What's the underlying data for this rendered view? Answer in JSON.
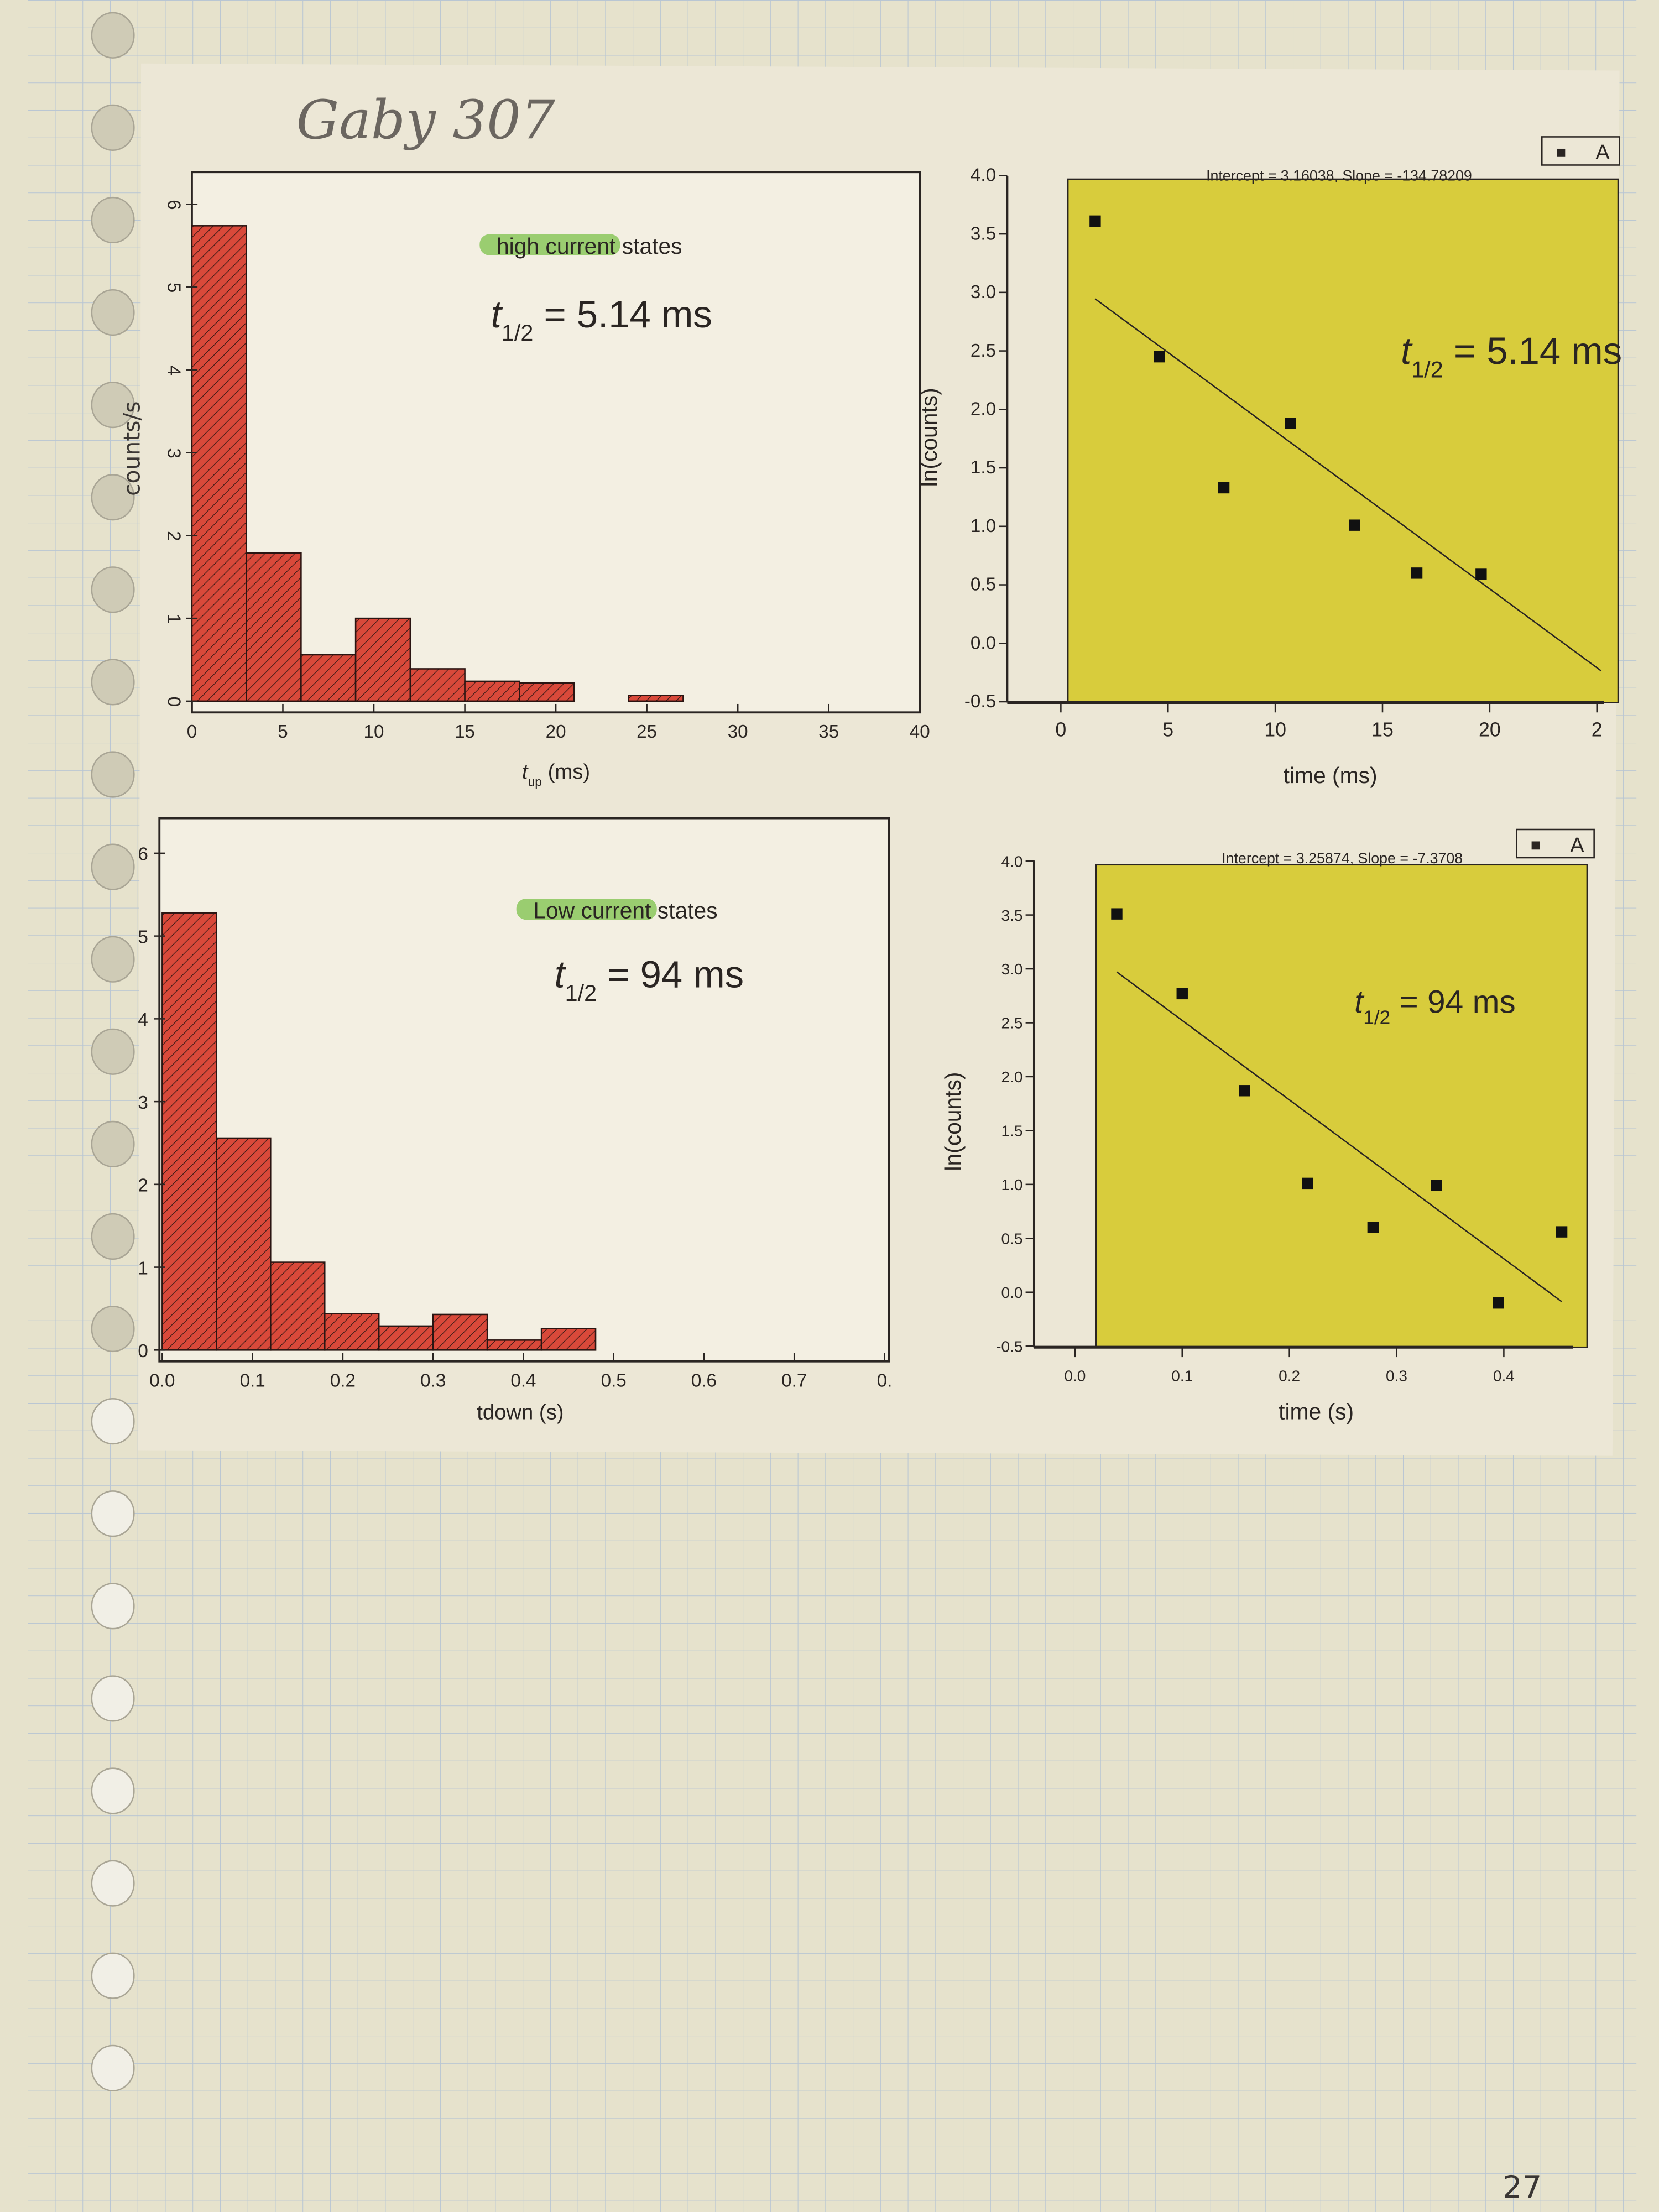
{
  "notebook": {
    "header_handwriting": "Gaby 307",
    "page_number": "27",
    "paper_color": "#e6e2cc",
    "grid_color": "#b9c6d3",
    "highlight_color": "#7cc24a",
    "plot_bg_color": "#d8cc3c",
    "bar_color": "#d9493a"
  },
  "chart_data": [
    {
      "type": "bar",
      "highlighted_label": "high current",
      "label_rest": " states",
      "annotation": {
        "symbol": "t",
        "subscript": "1/2",
        "text": " = 5.14 ms"
      },
      "xlabel": {
        "symbol": "t",
        "subscript": "up",
        "unit": " (ms)"
      },
      "ylabel": "counts/s",
      "bin_edges": [
        0,
        3,
        6,
        9,
        12,
        15,
        18,
        21,
        24,
        27
      ],
      "values": [
        5.74,
        1.79,
        0.56,
        1.0,
        0.39,
        0.24,
        0.22,
        0,
        0.07
      ],
      "xlim": [
        0,
        40
      ],
      "ylim": [
        0,
        6.5
      ],
      "xticks": [
        "0",
        "5",
        "10",
        "15",
        "20",
        "25",
        "30",
        "35",
        "40"
      ],
      "yticks": [
        "0",
        "1",
        "2",
        "3",
        "4",
        "5",
        "6"
      ]
    },
    {
      "type": "bar",
      "highlighted_label": "Low current ",
      "label_rest": "states",
      "annotation": {
        "symbol": "t",
        "subscript": "1/2",
        "text": " = 94 ms"
      },
      "xlabel": {
        "symbol": "",
        "subscript": "",
        "unit": "tdown (s)"
      },
      "bin_edges": [
        0,
        0.06,
        0.12,
        0.18,
        0.24,
        0.3,
        0.36,
        0.42,
        0.48
      ],
      "values": [
        5.28,
        2.56,
        1.06,
        0.44,
        0.29,
        0.43,
        0.12,
        0.26
      ],
      "xlim": [
        0,
        0.8
      ],
      "ylim": [
        0,
        6.5
      ],
      "xticks": [
        "0.0",
        "0.1",
        "0.2",
        "0.3",
        "0.4",
        "0.5",
        "0.6",
        "0.7",
        "0."
      ],
      "yticks": [
        "0",
        "1",
        "2",
        "3",
        "4",
        "5",
        "6"
      ]
    },
    {
      "type": "scatter",
      "fit_label": "Intercept = 3.16038, Slope = -134.78209",
      "fit": {
        "intercept": 3.16038,
        "slope_per_ms": -0.13478209
      },
      "legend": {
        "marker": "■",
        "label": "A"
      },
      "annotation": {
        "symbol": "t",
        "subscript": "1/2",
        "text": " = 5.14 ms"
      },
      "xlabel": "time (ms)",
      "ylabel": "ln(counts)",
      "x": [
        1.6,
        4.6,
        7.6,
        10.7,
        13.7,
        16.6,
        19.6
      ],
      "y": [
        3.61,
        2.45,
        1.33,
        1.88,
        1.01,
        0.6,
        0.59
      ],
      "xlim": [
        0,
        25
      ],
      "ylim": [
        -0.5,
        4.0
      ],
      "xticks": [
        "0",
        "5",
        "10",
        "15",
        "20",
        "2"
      ],
      "yticks": [
        "-0.5",
        "0.0",
        "0.5",
        "1.0",
        "1.5",
        "2.0",
        "2.5",
        "3.0",
        "3.5",
        "4.0"
      ]
    },
    {
      "type": "scatter",
      "fit_label": "Intercept = 3.25874, Slope = -7.3708",
      "fit": {
        "intercept": 3.25874,
        "slope_per_s": -7.3708
      },
      "legend": {
        "marker": "■",
        "label": "A"
      },
      "annotation": {
        "symbol": "t",
        "subscript": "1/2",
        "text": " = 94 ms"
      },
      "xlabel": "time (s)",
      "ylabel": "ln(counts)",
      "x": [
        0.039,
        0.1,
        0.158,
        0.217,
        0.278,
        0.337,
        0.395,
        0.454
      ],
      "y": [
        3.51,
        2.77,
        1.87,
        1.01,
        0.6,
        0.99,
        -0.1,
        0.56
      ],
      "xlim": [
        0,
        0.45
      ],
      "ylim": [
        -0.5,
        4.0
      ],
      "xticks": [
        "0.0",
        "0.1",
        "0.2",
        "0.3",
        "0.4"
      ],
      "yticks": [
        "-0.5",
        "0.0",
        "0.5",
        "1.0",
        "1.5",
        "2.0",
        "2.5",
        "3.0",
        "3.5",
        "4.0"
      ]
    }
  ]
}
